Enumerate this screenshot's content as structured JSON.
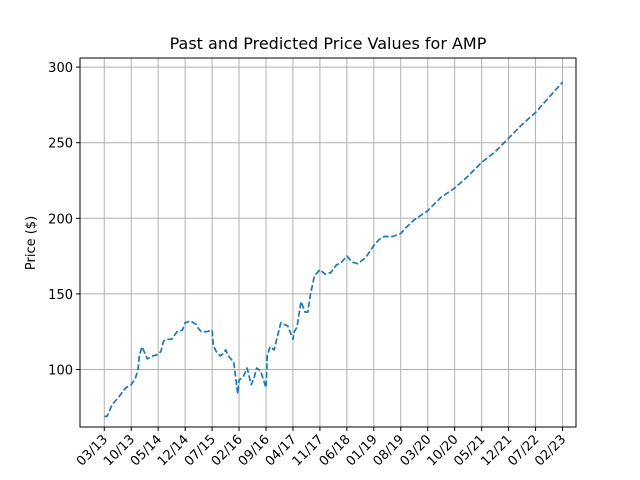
{
  "chart_data": {
    "type": "line",
    "title": "Past and Predicted Price Values for AMP",
    "xlabel": "",
    "ylabel": "Price ($)",
    "grid": true,
    "line_style": "dashed",
    "series_color": "#1f77b4",
    "ylim": [
      62,
      306
    ],
    "y_ticks": [
      100,
      150,
      200,
      250,
      300
    ],
    "x_ticks": [
      "03/13",
      "10/13",
      "05/14",
      "12/14",
      "07/15",
      "02/16",
      "09/16",
      "04/17",
      "11/17",
      "06/18",
      "01/19",
      "08/19",
      "03/20",
      "10/20",
      "05/21",
      "12/21",
      "07/22",
      "02/23"
    ],
    "xlim": [
      -0.9,
      17.5
    ],
    "series": [
      {
        "x": [
          0.0,
          0.1,
          0.3,
          0.5,
          0.8,
          1.0,
          1.15,
          1.25,
          1.3,
          1.4,
          1.6,
          1.8,
          2.0,
          2.1,
          2.2,
          2.35,
          2.5,
          2.7,
          2.9,
          3.0,
          3.2,
          3.4,
          3.5,
          3.6,
          3.8,
          4.0,
          4.05,
          4.15,
          4.3,
          4.45,
          4.5,
          4.6,
          4.8,
          4.95,
          5.0,
          5.15,
          5.3,
          5.45,
          5.55,
          5.65,
          5.8,
          6.0,
          6.05,
          6.15,
          6.3,
          6.55,
          6.65,
          6.8,
          7.0,
          7.05,
          7.15,
          7.3,
          7.45,
          7.55,
          7.65,
          7.8,
          8.0,
          8.2,
          8.4,
          8.6,
          8.8,
          9.0,
          9.2,
          9.4,
          9.7,
          10.0,
          10.2,
          10.4,
          10.7,
          11.0,
          11.2,
          11.5,
          12.0,
          12.5,
          13.0,
          13.5,
          14.0,
          14.5,
          15.0,
          15.5,
          16.0,
          16.5,
          17.0
        ],
        "y": [
          69,
          69,
          77,
          81,
          88,
          90,
          94,
          100,
          109,
          115,
          107,
          109,
          110,
          112,
          119,
          120,
          120,
          125,
          126,
          131,
          132,
          130,
          127,
          125,
          125,
          126,
          116,
          112,
          109,
          111,
          113,
          109,
          105,
          84,
          93,
          95,
          101,
          90,
          94,
          101,
          99,
          88,
          109,
          115,
          113,
          131,
          130,
          129,
          120,
          125,
          128,
          145,
          138,
          138,
          150,
          162,
          166,
          163,
          164,
          169,
          171,
          175,
          171,
          170,
          174,
          182,
          186,
          188,
          188,
          190,
          194,
          199,
          205,
          214,
          220,
          228,
          237,
          244,
          253,
          262,
          270,
          280,
          290
        ]
      }
    ]
  }
}
